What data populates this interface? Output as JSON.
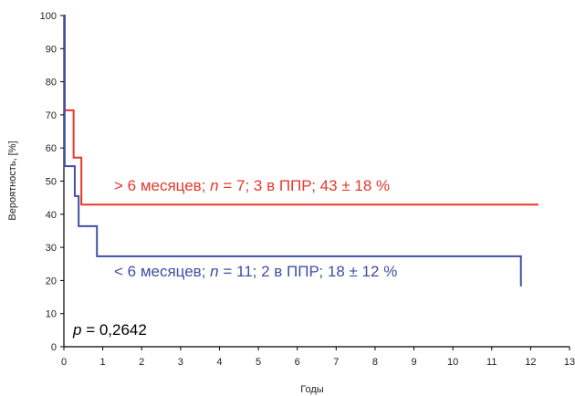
{
  "chart_data": {
    "type": "line",
    "step": true,
    "xlabel": "Годы",
    "ylabel": "Вероятность, [%]",
    "xlim": [
      0,
      13
    ],
    "ylim": [
      0,
      100
    ],
    "xticks": [
      "0",
      "1",
      "2",
      "3",
      "4",
      "5",
      "6",
      "7",
      "8",
      "9",
      "10",
      "11",
      "12",
      "13"
    ],
    "yticks": [
      "0",
      "10",
      "20",
      "30",
      "40",
      "50",
      "60",
      "70",
      "80",
      "90",
      "100"
    ],
    "grid": false,
    "legend": "none",
    "series": [
      {
        "color": "#e8372b",
        "x": [
          0,
          0.02,
          0.25,
          0.45,
          12.2
        ],
        "y": [
          100,
          71.4,
          57.1,
          42.9,
          42.9
        ]
      },
      {
        "color": "#3f4fa5",
        "x": [
          0,
          0.02,
          0.28,
          0.38,
          0.85,
          11.75
        ],
        "y": [
          100,
          54.5,
          45.5,
          36.4,
          27.3,
          18.2
        ]
      }
    ],
    "annotations": [
      {
        "parts": [
          "> 6 месяцев; ",
          "n",
          " = 7; 3 в ППР; 43 ± 18 %"
        ],
        "italic_index": 1,
        "color": "#e8372b"
      },
      {
        "parts": [
          "< 6 месяцев; ",
          "n",
          " = 11; 2 в ППР; 18 ± 12 %"
        ],
        "italic_index": 1,
        "color": "#3f4fa5"
      },
      {
        "parts": [
          "p",
          " = 0,2642"
        ],
        "italic_index": 0,
        "color": "#000000"
      }
    ]
  }
}
